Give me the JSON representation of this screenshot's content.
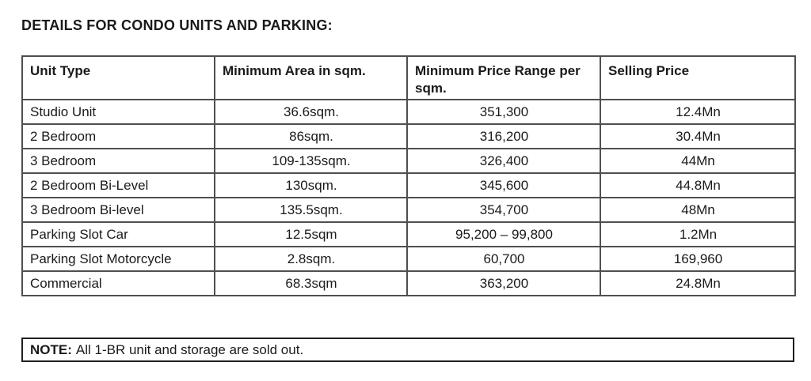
{
  "title": "DETAILS FOR CONDO UNITS AND PARKING:",
  "table": {
    "columns": [
      "Unit Type",
      "Minimum Area in sqm.",
      "Minimum Price Range per sqm.",
      "Selling Price"
    ],
    "rows": [
      [
        "Studio Unit",
        "36.6sqm.",
        "351,300",
        "12.4Mn"
      ],
      [
        "2 Bedroom",
        "86sqm.",
        "316,200",
        "30.4Mn"
      ],
      [
        "3 Bedroom",
        "109-135sqm.",
        "326,400",
        "44Mn"
      ],
      [
        "2 Bedroom Bi-Level",
        "130sqm.",
        "345,600",
        "44.8Mn"
      ],
      [
        "3 Bedroom Bi-level",
        "135.5sqm.",
        "354,700",
        "48Mn"
      ],
      [
        "Parking Slot Car",
        "12.5sqm",
        "95,200 – 99,800",
        "1.2Mn"
      ],
      [
        "Parking Slot Motorcycle",
        "2.8sqm.",
        "60,700",
        "169,960"
      ],
      [
        "Commercial",
        "68.3sqm",
        "363,200",
        "24.8Mn"
      ]
    ]
  },
  "note": {
    "label": "NOTE:",
    "text": "All 1-BR unit and storage are sold out."
  },
  "colors": {
    "text": "#1a1a1a",
    "table_border": "#4f4f4f",
    "note_border": "#1f1f1f",
    "background": "#ffffff"
  }
}
